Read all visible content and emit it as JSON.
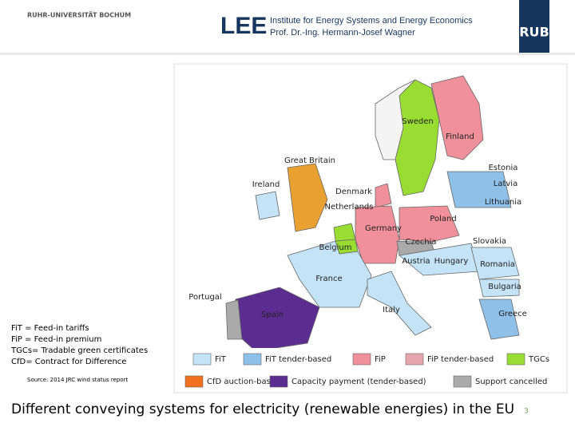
{
  "header": {
    "university": "RUHR-UNIVERSITÄT BOCHUM",
    "logo": "LEE",
    "institute": "Institute for Energy Systems and Energy Economics",
    "professor": "Prof. Dr.-Ing. Hermann-Josef Wagner",
    "rub": "RUB"
  },
  "map": {
    "countries": [
      "Sweden",
      "Finland",
      "Great Britain",
      "Estonia",
      "Ireland",
      "Latvia",
      "Denmark",
      "Lithuania",
      "Netherlands",
      "Poland",
      "Germany",
      "Czechia",
      "Slovakia",
      "Belgium",
      "Austria",
      "Hungary",
      "Romania",
      "France",
      "Bulgaria",
      "Portugal",
      "Italy",
      "Spain",
      "Greece"
    ]
  },
  "legend": [
    {
      "label": "FiT",
      "color": "#c5e3f7"
    },
    {
      "label": "FiT tender-based",
      "color": "#8fc1e8"
    },
    {
      "label": "FiP",
      "color": "#f0909a"
    },
    {
      "label": "FiP tender-based",
      "color": "#e6a4ac"
    },
    {
      "label": "TGCs",
      "color": "#99dd33"
    },
    {
      "label": "CfD auction-based",
      "color": "#f07020"
    },
    {
      "label": "Capacity payment (tender-based)",
      "color": "#5c2d91"
    },
    {
      "label": "Support cancelled",
      "color": "#aaaaaa"
    }
  ],
  "abbreviations": [
    "FiT = Feed-in tariffs",
    "FiP = Feed-in premium",
    "TGCs= Tradable green certificates",
    "CfD= Contract for Difference"
  ],
  "source": "Source: 2014 JRC wind status report",
  "title": "Different conveying systems for electricity (renewable energies) in the EU",
  "page_number": 3
}
